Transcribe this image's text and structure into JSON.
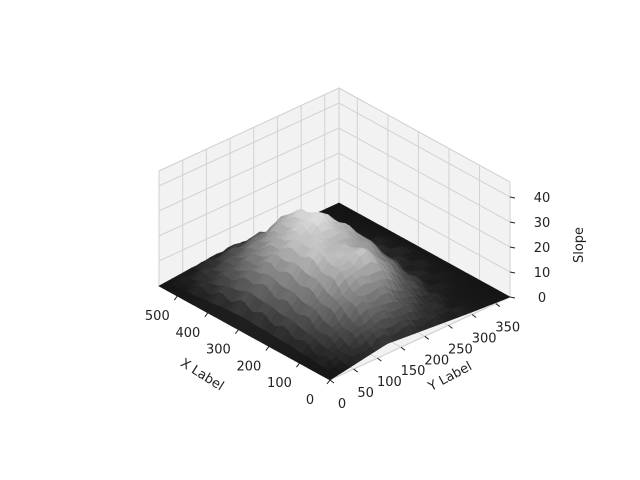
{
  "chart_data": {
    "type": "surface3d",
    "title": "",
    "xlabel": "X Label",
    "ylabel": "Y Label",
    "zlabel": "Slope",
    "xlim": [
      0,
      560
    ],
    "ylim": [
      0,
      380
    ],
    "zlim": [
      0,
      46
    ],
    "xticks": [
      "0",
      "100",
      "200",
      "300",
      "400",
      "500"
    ],
    "yticks": [
      "0",
      "50",
      "100",
      "150",
      "200",
      "250",
      "300",
      "350"
    ],
    "zticks": [
      "0",
      "10",
      "20",
      "30",
      "40"
    ],
    "colormap": "gray",
    "grid": true,
    "surface_x": [
      0,
      80,
      160,
      240,
      320,
      400,
      480,
      560
    ],
    "surface_y": [
      0,
      60,
      120,
      180,
      240,
      300,
      380
    ],
    "surface_z": [
      [
        0,
        2,
        4,
        3,
        2,
        1,
        0
      ],
      [
        0,
        6,
        14,
        12,
        5,
        1,
        0
      ],
      [
        0,
        10,
        22,
        26,
        12,
        2,
        0
      ],
      [
        0,
        12,
        26,
        22,
        18,
        3,
        0
      ],
      [
        0,
        14,
        24,
        30,
        20,
        4,
        0
      ],
      [
        0,
        10,
        18,
        26,
        14,
        2,
        0
      ],
      [
        0,
        5,
        10,
        12,
        6,
        1,
        0
      ],
      [
        0,
        1,
        2,
        2,
        1,
        0,
        0
      ]
    ]
  },
  "colors": {
    "pane": "#f2f2f2",
    "pane_edge": "#cfcfcf",
    "grid": "#d2d2d2",
    "surface_low": "#141414",
    "surface_high": "#f4f4f4"
  }
}
